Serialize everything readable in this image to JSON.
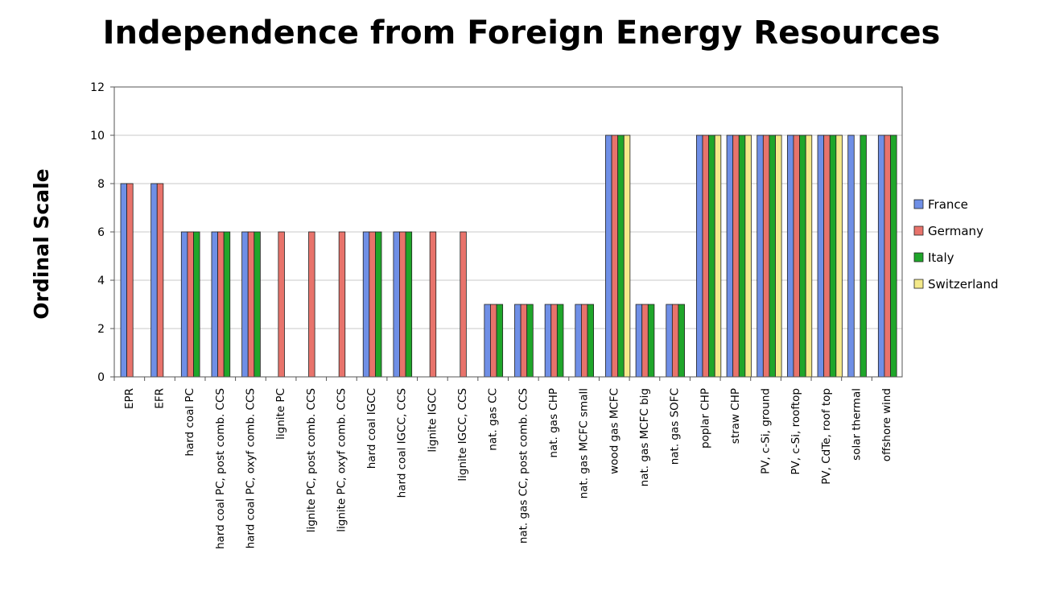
{
  "chart_data": {
    "type": "bar",
    "title": "Independence from Foreign Energy Resources",
    "xlabel": "",
    "ylabel": "Ordinal Scale",
    "ylim": [
      0,
      12
    ],
    "yticks": [
      0,
      2,
      4,
      6,
      8,
      10,
      12
    ],
    "grid": true,
    "legend_position": "right",
    "categories": [
      "EPR",
      "EFR",
      "hard coal PC",
      "hard coal PC, post comb. CCS",
      "hard coal PC, oxyf comb. CCS",
      "lignite PC",
      "lignite PC, post comb. CCS",
      "lignite PC, oxyf comb. CCS",
      "hard coal IGCC",
      "hard coal IGCC, CCS",
      "lignite IGCC",
      "lignite IGCC, CCS",
      "nat. gas CC",
      "nat. gas CC, post comb. CCS",
      "nat. gas CHP",
      "nat. gas MCFC small",
      "wood gas MCFC",
      "nat. gas MCFC big",
      "nat. gas SOFC",
      "poplar CHP",
      "straw CHP",
      "PV, c-Si, ground",
      "PV, c-Si, rooftop",
      "PV, CdTe, roof top",
      "solar thermal",
      "offshore wind"
    ],
    "series": [
      {
        "name": "France",
        "color": "#6f8fe6",
        "values": [
          8,
          8,
          6,
          6,
          6,
          null,
          null,
          null,
          6,
          6,
          null,
          null,
          3,
          3,
          3,
          3,
          10,
          3,
          3,
          10,
          10,
          10,
          10,
          10,
          10,
          10
        ]
      },
      {
        "name": "Germany",
        "color": "#e8736b",
        "values": [
          8,
          8,
          6,
          6,
          6,
          6,
          6,
          6,
          6,
          6,
          6,
          6,
          3,
          3,
          3,
          3,
          10,
          3,
          3,
          10,
          10,
          10,
          10,
          10,
          null,
          10
        ]
      },
      {
        "name": "Italy",
        "color": "#1fa62a",
        "values": [
          null,
          null,
          6,
          6,
          6,
          null,
          null,
          null,
          6,
          6,
          null,
          null,
          3,
          3,
          3,
          3,
          10,
          3,
          3,
          10,
          10,
          10,
          10,
          10,
          10,
          10
        ]
      },
      {
        "name": "Switzerland",
        "color": "#f4e98a",
        "values": [
          null,
          null,
          null,
          null,
          null,
          null,
          null,
          null,
          null,
          null,
          null,
          null,
          null,
          null,
          null,
          null,
          10,
          null,
          null,
          10,
          10,
          10,
          10,
          10,
          null,
          null
        ]
      }
    ]
  }
}
